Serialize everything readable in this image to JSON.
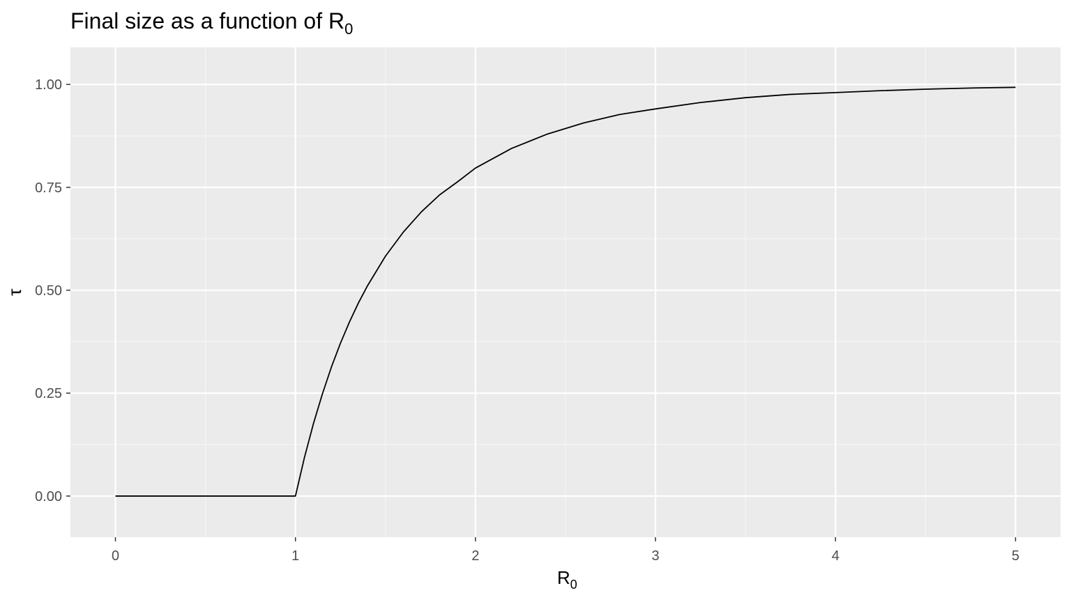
{
  "chart_data": {
    "type": "line",
    "title_main": "Final size as a function of R",
    "title_subscript": "0",
    "xlabel_main": "R",
    "xlabel_subscript": "0",
    "ylabel": "τ",
    "xlim": [
      -0.25,
      5.25
    ],
    "ylim": [
      -0.1,
      1.09
    ],
    "x_ticks": [
      0,
      1,
      2,
      3,
      4,
      5
    ],
    "x_tick_labels": [
      "0",
      "1",
      "2",
      "3",
      "4",
      "5"
    ],
    "x_minor_ticks": [
      0.5,
      1.5,
      2.5,
      3.5,
      4.5
    ],
    "y_ticks": [
      0,
      0.25,
      0.5,
      0.75,
      1.0
    ],
    "y_tick_labels": [
      "0.00",
      "0.25",
      "0.50",
      "0.75",
      "1.00"
    ],
    "y_minor_ticks": [
      0.125,
      0.375,
      0.625,
      0.875
    ],
    "grid": true,
    "legend": "none",
    "colors": {
      "panel_background": "#ebebeb",
      "grid_major": "#ffffff",
      "grid_minor": "#f5f5f5",
      "line": "#000000",
      "tick_text": "#4d4d4d",
      "tick_mark": "#333333"
    },
    "series": [
      {
        "x": [
          0,
          0.5,
          1.0,
          1.05,
          1.1,
          1.15,
          1.2,
          1.25,
          1.3,
          1.35,
          1.4,
          1.5,
          1.6,
          1.7,
          1.8,
          1.9,
          2.0,
          2.2,
          2.4,
          2.6,
          2.8,
          3.0,
          3.25,
          3.5,
          3.75,
          4.0,
          4.25,
          4.5,
          4.75,
          5.0
        ],
        "y": [
          0,
          0,
          0,
          0.0937,
          0.1761,
          0.2485,
          0.3137,
          0.3713,
          0.4229,
          0.4693,
          0.5107,
          0.5828,
          0.6416,
          0.6906,
          0.7314,
          0.7633,
          0.7968,
          0.8445,
          0.8795,
          0.9063,
          0.9269,
          0.9405,
          0.956,
          0.9678,
          0.9758,
          0.9802,
          0.9848,
          0.9884,
          0.9912,
          0.993
        ]
      }
    ]
  }
}
